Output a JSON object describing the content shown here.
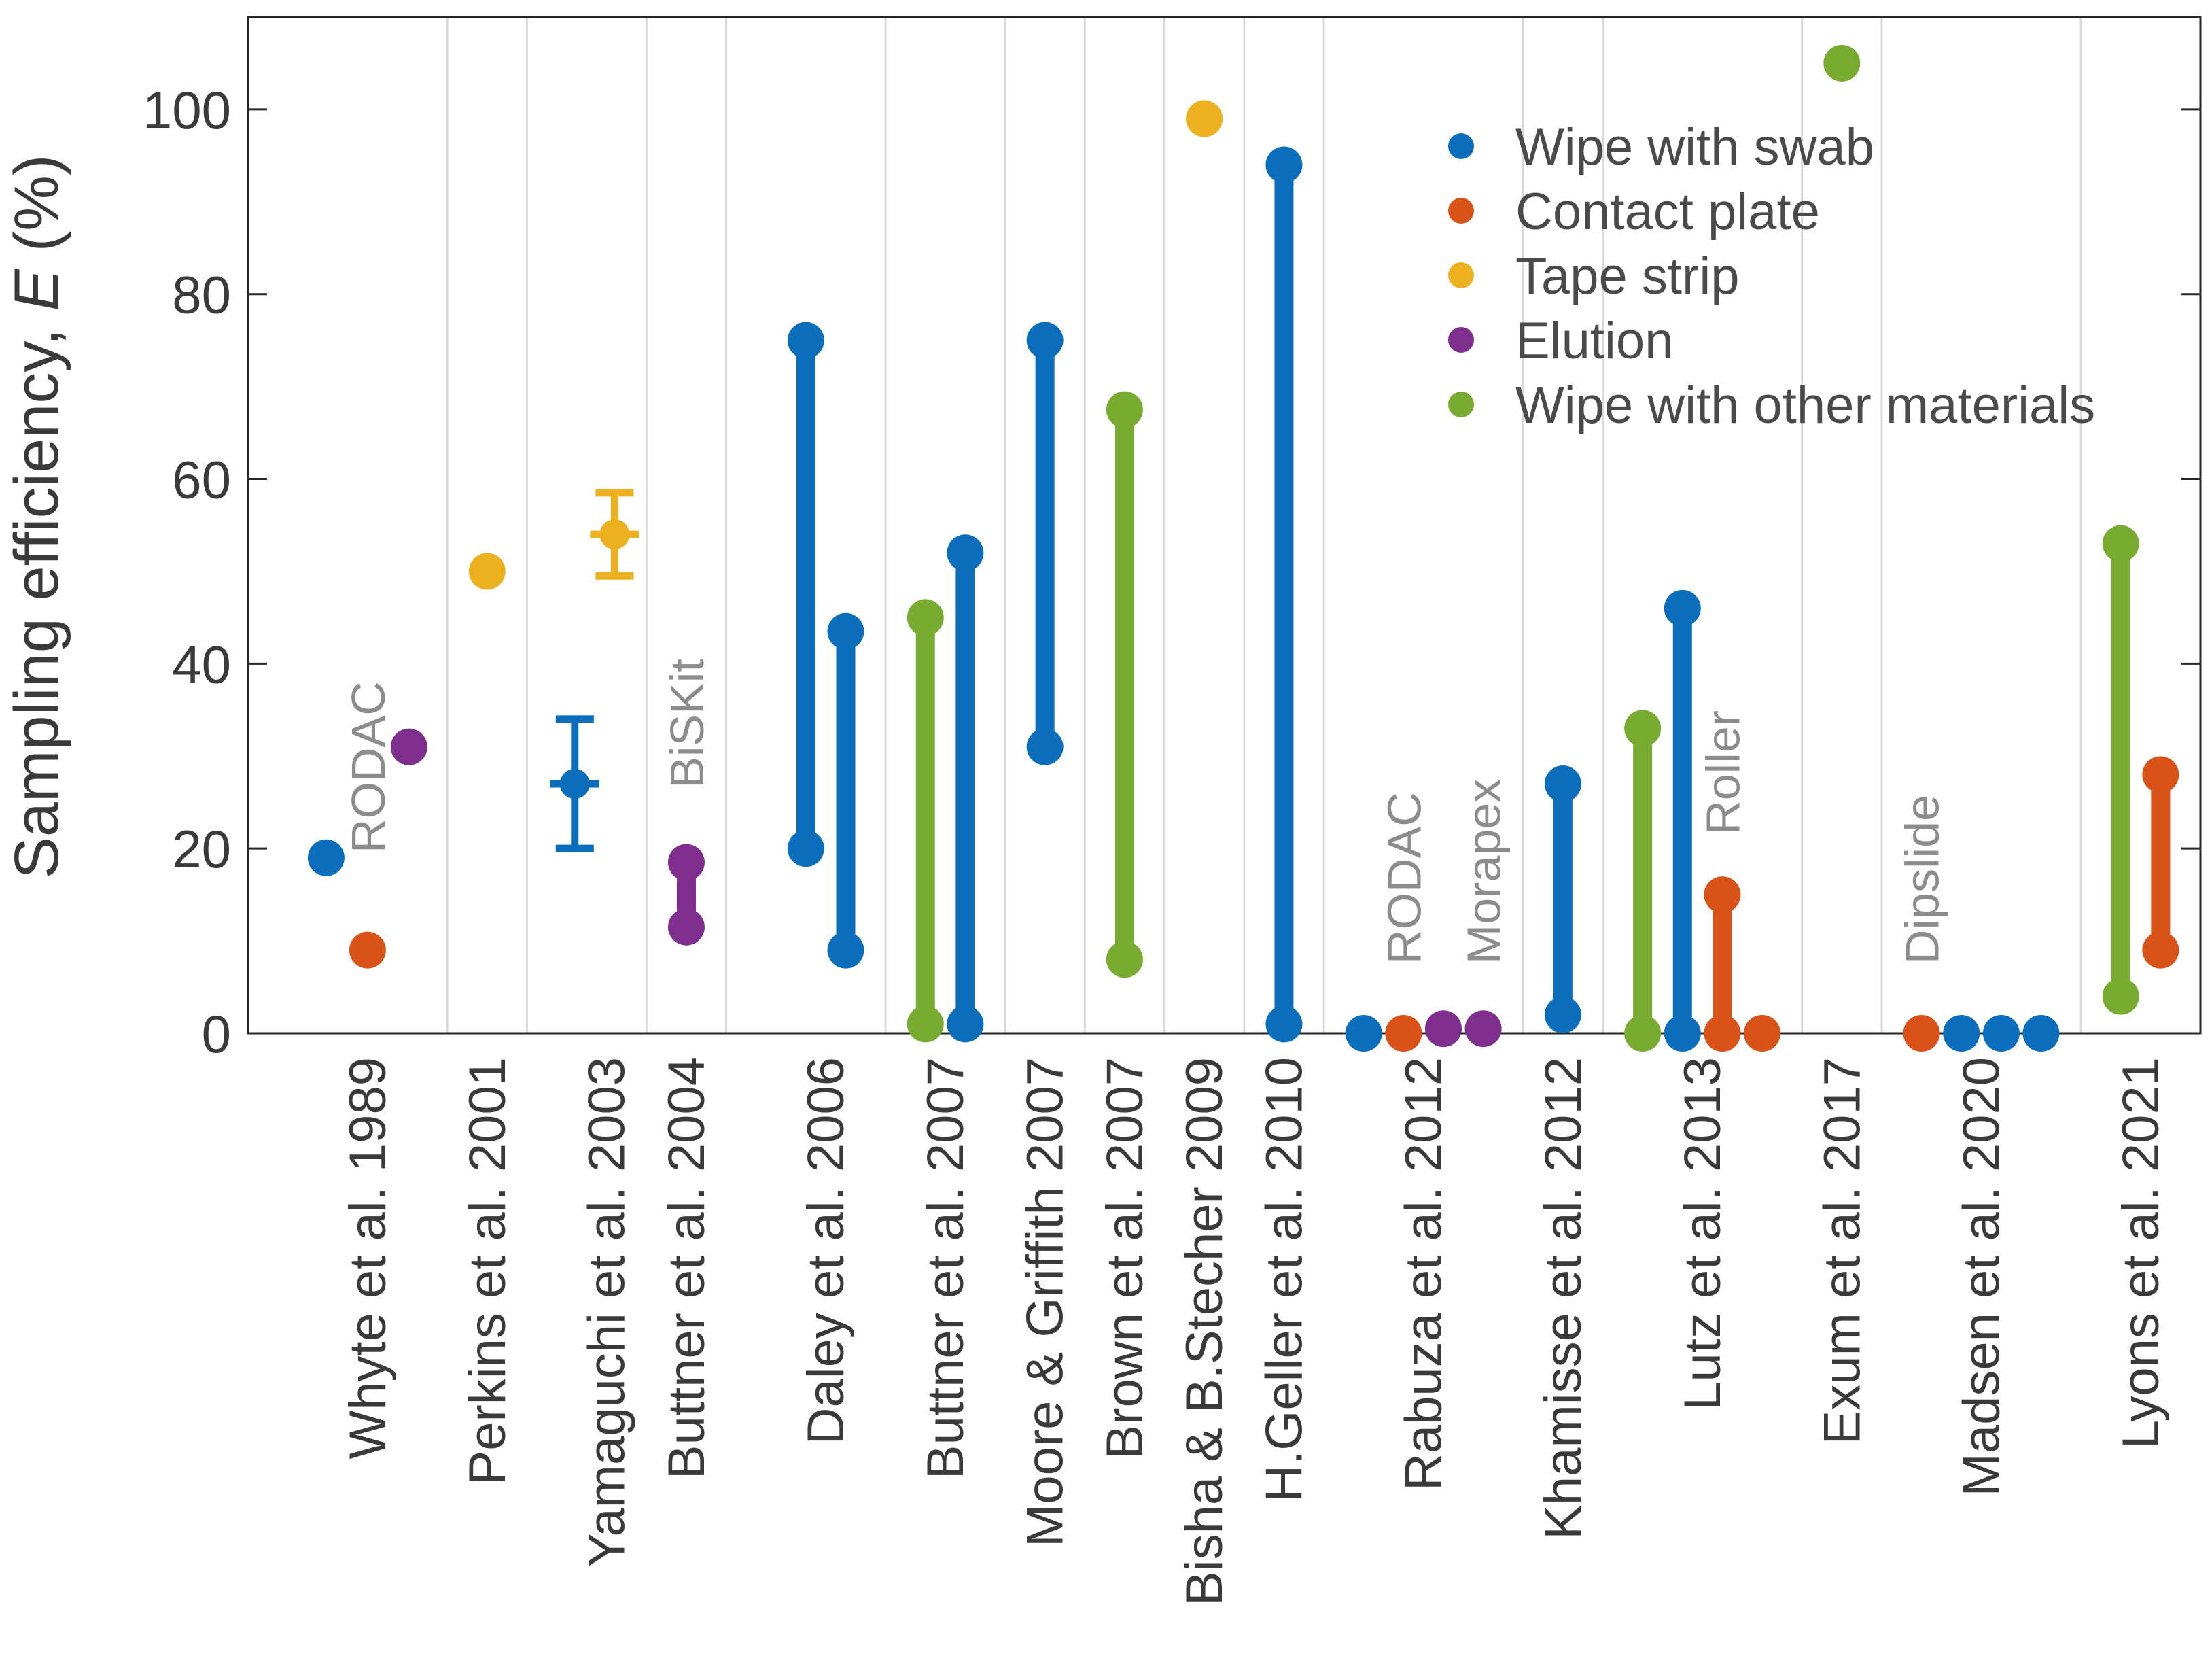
{
  "chart_data": {
    "type": "scatter",
    "title": "",
    "xlabel": "",
    "ylabel": "Sampling efficiency, E (%)",
    "ylabel_parts": {
      "prefix": "Sampling efficiency, ",
      "var": "E",
      "suffix": " (%)"
    },
    "ylim": [
      0,
      110
    ],
    "yticks": [
      0,
      20,
      40,
      60,
      80,
      100
    ],
    "ytick_labels": [
      "0",
      "20",
      "40",
      "60",
      "80",
      "100"
    ],
    "grid": "vertical lines between study groups",
    "legend_position": "top-right",
    "methods": [
      {
        "key": "swab",
        "name": "Wipe with swab",
        "color": "#0a6ebd"
      },
      {
        "key": "contact",
        "name": "Contact plate",
        "color": "#d95319"
      },
      {
        "key": "tape",
        "name": "Tape strip",
        "color": "#edb120"
      },
      {
        "key": "elution",
        "name": "Elution",
        "color": "#7e2f8e"
      },
      {
        "key": "other",
        "name": "Wipe with other materials",
        "color": "#77ac30"
      }
    ],
    "categories": [
      "Whyte et al. 1989",
      "Perkins et al. 2001",
      "Yamaguchi et al. 2003",
      "Buttner et al. 2004",
      "Daley et al. 2006",
      "Buttner et al. 2007",
      "Moore & Griffith 2007",
      "Brown et al. 2007",
      "Bisha & B.Stecher 2009",
      "H.Geller et al. 2010",
      "Rabuza et al. 2012",
      "Khamisse et al. 2012",
      "Lutz et al. 2013",
      "Exum et al. 2017",
      "Madsen et al. 2020",
      "Lyons et al. 2021"
    ],
    "series": [
      {
        "name": "Whyte et al. 1989 - swab",
        "method": "swab",
        "x": 1.48,
        "values": [
          19
        ]
      },
      {
        "name": "Whyte et al. 1989 - contact plate",
        "method": "contact",
        "x": 2.0,
        "values": [
          9
        ]
      },
      {
        "name": "Whyte et al. 1989 - elution",
        "method": "elution",
        "x": 2.52,
        "values": [
          31
        ]
      },
      {
        "name": "Perkins et al. 2001 - tape strip",
        "method": "tape",
        "x": 3.5,
        "values": [
          50
        ]
      },
      {
        "name": "Yamaguchi et al. 2003 - swab",
        "method": "swab",
        "x": 4.6,
        "values": [
          27
        ],
        "error": [
          20,
          34
        ]
      },
      {
        "name": "Yamaguchi et al. 2003 - tape strip",
        "method": "tape",
        "x": 5.1,
        "values": [
          54
        ],
        "error": [
          49.5,
          58.5
        ]
      },
      {
        "name": "Buttner et al. 2004 - elution",
        "method": "elution",
        "x": 6.0,
        "values": [
          11.5,
          18.5
        ]
      },
      {
        "name": "Daley et al. 2006 - swab A",
        "method": "swab",
        "x": 7.5,
        "values": [
          20,
          75
        ]
      },
      {
        "name": "Daley et al. 2006 - swab B",
        "method": "swab",
        "x": 8.0,
        "values": [
          9,
          43.5
        ]
      },
      {
        "name": "Buttner et al. 2007 - other",
        "method": "other",
        "x": 9.0,
        "values": [
          1,
          45
        ]
      },
      {
        "name": "Buttner et al. 2007 - swab",
        "method": "swab",
        "x": 9.5,
        "values": [
          1,
          52
        ]
      },
      {
        "name": "Moore & Griffith 2007 - swab",
        "method": "swab",
        "x": 10.5,
        "values": [
          31,
          75
        ]
      },
      {
        "name": "Brown et al. 2007 - other",
        "method": "other",
        "x": 11.5,
        "values": [
          8,
          67.5
        ]
      },
      {
        "name": "Bisha & B.Stecher 2009 - tape strip",
        "method": "tape",
        "x": 12.5,
        "values": [
          99
        ]
      },
      {
        "name": "H.Geller et al. 2010 - swab",
        "method": "swab",
        "x": 13.5,
        "values": [
          1,
          94
        ]
      },
      {
        "name": "Rabuza et al. 2012 - swab",
        "method": "swab",
        "x": 14.5,
        "values": [
          0
        ]
      },
      {
        "name": "Rabuza et al. 2012 - contact plate",
        "method": "contact",
        "x": 15.0,
        "values": [
          0
        ]
      },
      {
        "name": "Rabuza et al. 2012 - elution A",
        "method": "elution",
        "x": 15.5,
        "values": [
          0.5
        ]
      },
      {
        "name": "Rabuza et al. 2012 - elution B",
        "method": "elution",
        "x": 16.0,
        "values": [
          0.5
        ]
      },
      {
        "name": "Khamisse et al. 2012 - swab",
        "method": "swab",
        "x": 17.0,
        "values": [
          2,
          27
        ]
      },
      {
        "name": "Lutz et al. 2013 - other",
        "method": "other",
        "x": 18.0,
        "values": [
          0,
          33
        ]
      },
      {
        "name": "Lutz et al. 2013 - swab",
        "method": "swab",
        "x": 18.5,
        "values": [
          0,
          46
        ]
      },
      {
        "name": "Lutz et al. 2013 - contact plate",
        "method": "contact",
        "x": 19.0,
        "values": [
          0,
          15
        ]
      },
      {
        "name": "Lutz et al. 2013 - contact plate B",
        "method": "contact",
        "x": 19.5,
        "values": [
          0
        ]
      },
      {
        "name": "Exum et al. 2017 - other",
        "method": "other",
        "x": 20.5,
        "values": [
          105
        ]
      },
      {
        "name": "Madsen et al. 2020 - contact plate",
        "method": "contact",
        "x": 21.5,
        "values": [
          0
        ]
      },
      {
        "name": "Madsen et al. 2020 - swab A",
        "method": "swab",
        "x": 22.0,
        "values": [
          0
        ]
      },
      {
        "name": "Madsen et al. 2020 - swab B",
        "method": "swab",
        "x": 22.5,
        "values": [
          0
        ]
      },
      {
        "name": "Madsen et al. 2020 - swab C",
        "method": "swab",
        "x": 23.0,
        "values": [
          0
        ]
      },
      {
        "name": "Lyons et al. 2021 - other",
        "method": "other",
        "x": 24.0,
        "values": [
          4,
          53
        ]
      },
      {
        "name": "Lyons et al. 2021 - contact plate",
        "method": "contact",
        "x": 24.5,
        "values": [
          9,
          28
        ]
      }
    ],
    "annotations": [
      {
        "text": "RODAC",
        "x": 2.0,
        "y": 19.5
      },
      {
        "text": "BiSKit",
        "x": 6.0,
        "y": 26.5
      },
      {
        "text": "RODAC",
        "x": 15.0,
        "y": 7.5
      },
      {
        "text": "Morapex",
        "x": 16.0,
        "y": 7.5
      },
      {
        "text": "Roller",
        "x": 19.0,
        "y": 21.5
      },
      {
        "text": "Dipslide",
        "x": 21.5,
        "y": 7.5
      }
    ]
  }
}
